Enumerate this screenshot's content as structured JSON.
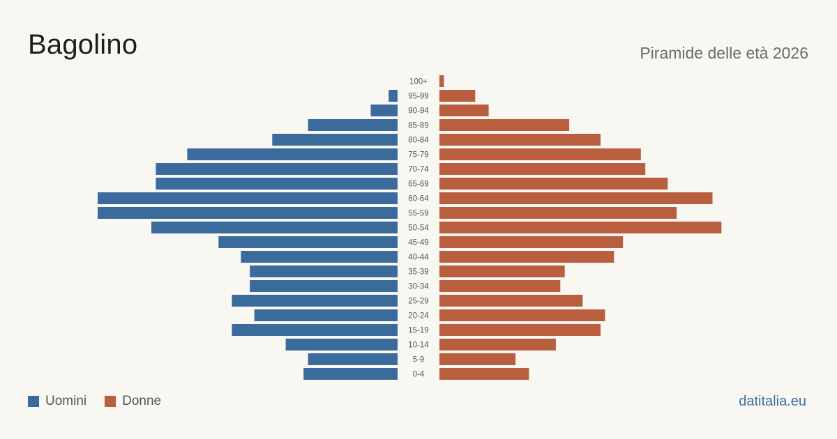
{
  "header": {
    "title": "Bagolino",
    "subtitle": "Piramide delle età 2026"
  },
  "legend": {
    "men_label": "Uomini",
    "women_label": "Donne"
  },
  "colors": {
    "men": "#3b6a9d",
    "women": "#b95e3f",
    "age_label": "#555555"
  },
  "source": "datitalia.eu",
  "chart_data": {
    "type": "bar",
    "orientation": "horizontal-pyramid",
    "categories": [
      "100+",
      "95-99",
      "90-94",
      "85-89",
      "80-84",
      "75-79",
      "70-74",
      "65-69",
      "60-64",
      "55-59",
      "50-54",
      "45-49",
      "40-44",
      "35-39",
      "30-34",
      "25-29",
      "20-24",
      "15-19",
      "10-14",
      "5-9",
      "0-4"
    ],
    "series": [
      {
        "name": "Uomini",
        "values": [
          0,
          2,
          6,
          20,
          28,
          47,
          54,
          54,
          67,
          67,
          55,
          40,
          35,
          33,
          33,
          37,
          32,
          37,
          25,
          20,
          21
        ]
      },
      {
        "name": "Donne",
        "values": [
          1,
          8,
          11,
          29,
          36,
          45,
          46,
          51,
          61,
          53,
          63,
          41,
          39,
          28,
          27,
          32,
          37,
          36,
          26,
          17,
          20
        ]
      }
    ],
    "xlim": [
      0,
      67
    ],
    "grid": false,
    "legend_position": "bottom-left"
  }
}
